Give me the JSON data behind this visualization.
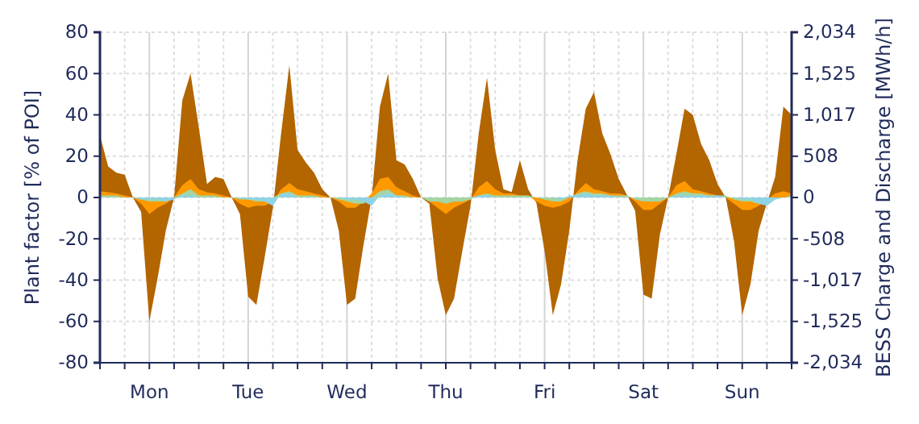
{
  "chart_data": {
    "type": "area",
    "ylabel": "Plant factor [% of POI]",
    "y2label": "BESS Charge and Discharge [MWh/h]",
    "categories": [
      null,
      null,
      null,
      null,
      null,
      null,
      "Mon",
      null,
      null,
      null,
      null,
      null,
      null,
      null,
      null,
      null,
      null,
      null,
      "Tue",
      null,
      null,
      null,
      null,
      null,
      null,
      null,
      null,
      null,
      null,
      null,
      "Wed",
      null,
      null,
      null,
      null,
      null,
      null,
      null,
      null,
      null,
      null,
      null,
      "Thu",
      null,
      null,
      null,
      null,
      null,
      null,
      null,
      null,
      null,
      null,
      null,
      "Fri",
      null,
      null,
      null,
      null,
      null,
      null,
      null,
      null,
      null,
      null,
      null,
      "Sat",
      null,
      null,
      null,
      null,
      null,
      null,
      null,
      null,
      null,
      null,
      null,
      "Sun",
      null,
      null,
      null,
      null,
      null,
      null
    ],
    "ylim": [
      -80,
      80
    ],
    "yticks": [
      -80,
      -60,
      -40,
      -20,
      0,
      20,
      40,
      60,
      80
    ],
    "y2lim": [
      -2034,
      2034
    ],
    "y2ticks": [
      {
        "value": -2034,
        "label": "-2,034"
      },
      {
        "value": -1525,
        "label": "-1,525"
      },
      {
        "value": -1017,
        "label": "-1,017"
      },
      {
        "value": -508,
        "label": "-508"
      },
      0,
      {
        "value": 508,
        "label": "508"
      },
      {
        "value": 1017,
        "label": "1,017"
      },
      {
        "value": 1525,
        "label": "1,525"
      },
      {
        "value": 2034,
        "label": "2,034"
      }
    ],
    "grid": true,
    "series": [
      {
        "color": "#b36500",
        "values": [
          30,
          15,
          12,
          11,
          0,
          -7,
          -60,
          -39,
          -16,
          0,
          47,
          60,
          34,
          6.5,
          10,
          9,
          0,
          -8,
          -48,
          -52,
          -29,
          -5,
          31,
          64,
          23,
          17,
          12,
          4,
          0,
          -16,
          -52,
          -49,
          -23,
          0,
          44,
          60,
          18,
          16,
          9,
          0,
          -3,
          -39,
          -57,
          -49,
          -26,
          -4,
          31,
          58,
          23,
          4,
          2.6,
          18,
          4,
          -2.6,
          -26,
          -57,
          -42,
          -16,
          18,
          43,
          51,
          31,
          21,
          9,
          1.3,
          -6.5,
          -47,
          -49,
          -18,
          0,
          21,
          43,
          40,
          26,
          18,
          6.5,
          0,
          -21,
          -57,
          -42,
          -16,
          -2.6,
          10,
          44,
          40
        ]
      },
      {
        "color": "#ff9900",
        "values": [
          3,
          2.5,
          2,
          1,
          0,
          -3,
          -8,
          -5,
          -3,
          0,
          6,
          9,
          4,
          2.5,
          2,
          1,
          0,
          -3,
          -5,
          -4,
          -4,
          -2,
          4,
          7,
          4,
          3,
          2,
          1,
          0,
          -2,
          -5,
          -5,
          -2,
          2,
          9,
          10,
          5,
          3,
          1,
          0,
          -2,
          -5,
          -8,
          -5,
          -3,
          -1,
          5,
          8,
          4,
          2,
          2,
          1,
          1,
          -2,
          -4,
          -5,
          -4,
          -2,
          3,
          7,
          4,
          3,
          2,
          2,
          1,
          -2,
          -6,
          -6,
          -3,
          0,
          6,
          8,
          4,
          3,
          2,
          1,
          0,
          -3,
          -6,
          -6,
          -4,
          -1,
          2,
          3,
          2
        ]
      },
      {
        "color": "#a3d5a5",
        "values": [
          1,
          1,
          1,
          0,
          0,
          -1,
          -2,
          -2,
          -2,
          0,
          2,
          4,
          1,
          1,
          1,
          0,
          0,
          -1,
          -1,
          -2,
          -2,
          0,
          2,
          3,
          1,
          1,
          1,
          0,
          0,
          -1,
          -2,
          -3,
          -3,
          0,
          3,
          4,
          1,
          1,
          0,
          0,
          -2,
          -2,
          -3,
          -2,
          -2,
          -1,
          1,
          2,
          1,
          1,
          1,
          1,
          1,
          0,
          -1,
          -2,
          -2,
          0,
          2,
          3,
          2,
          2,
          1,
          1,
          1,
          -1,
          -2,
          -2,
          -2,
          0,
          2,
          3,
          2,
          2,
          1,
          1,
          1,
          -1,
          -2,
          -2,
          -3,
          -2,
          -1,
          0,
          1
        ]
      },
      {
        "color": "#8fd3e6",
        "values": [
          0,
          0,
          0,
          0,
          0,
          -1,
          -1,
          -1,
          -2,
          -1,
          1,
          1,
          0,
          0,
          0,
          0,
          0,
          0,
          -1,
          -1,
          -2,
          -4,
          2,
          2,
          0,
          0,
          0,
          0,
          0,
          0,
          -1,
          -1,
          -2,
          -4,
          1,
          2,
          1,
          0,
          0,
          0,
          0,
          0,
          0,
          0,
          0,
          0,
          1,
          1,
          0,
          0,
          0,
          0,
          0,
          0,
          0,
          0,
          -1,
          1,
          1,
          2,
          1,
          1,
          1,
          0,
          0,
          0,
          0,
          0,
          0,
          0,
          1,
          1,
          1,
          1,
          1,
          1,
          0,
          0,
          -1,
          -1,
          -3,
          -4,
          -1,
          0,
          0
        ]
      }
    ]
  }
}
